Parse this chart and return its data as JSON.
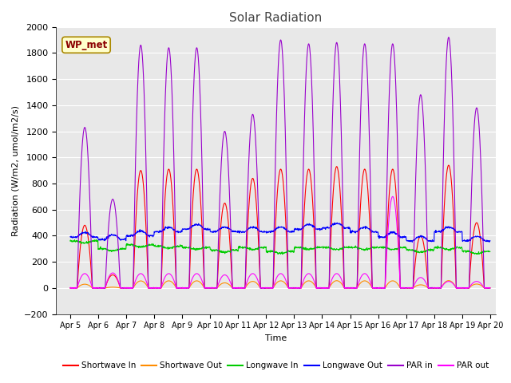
{
  "title": "Solar Radiation",
  "xlabel": "Time",
  "ylabel": "Radiation (W/m2, umol/m2/s)",
  "ylim": [
    -200,
    2000
  ],
  "yticks": [
    -200,
    0,
    200,
    400,
    600,
    800,
    1000,
    1200,
    1400,
    1600,
    1800,
    2000
  ],
  "xlim_days": [
    4.5,
    20.2
  ],
  "xtick_days": [
    5,
    6,
    7,
    8,
    9,
    10,
    11,
    12,
    13,
    14,
    15,
    16,
    17,
    18,
    19,
    20
  ],
  "xtick_labels": [
    "Apr 5",
    "Apr 6",
    "Apr 7",
    "Apr 8",
    "Apr 9",
    "Apr 10",
    "Apr 11",
    "Apr 12",
    "Apr 13",
    "Apr 14",
    "Apr 15",
    "Apr 16",
    "Apr 17",
    "Apr 18",
    "Apr 19",
    "Apr 20"
  ],
  "colors": {
    "shortwave_in": "#ff0000",
    "shortwave_out": "#ff8c00",
    "longwave_in": "#00cc00",
    "longwave_out": "#0000ff",
    "par_in": "#9900cc",
    "par_out": "#ff00ff"
  },
  "legend_labels": [
    "Shortwave In",
    "Shortwave Out",
    "Longwave In",
    "Longwave Out",
    "PAR in",
    "PAR out"
  ],
  "wp_met_label": "WP_met",
  "fig_bg": "#ffffff",
  "plot_bg": "#e8e8e8",
  "grid_color": "#ffffff",
  "days_data": {
    "peak_sw_in": [
      480,
      100,
      900,
      910,
      910,
      650,
      840,
      910,
      910,
      930,
      910,
      910,
      400,
      940,
      500
    ],
    "peak_par_in": [
      1230,
      680,
      1860,
      1840,
      1840,
      1200,
      1330,
      1900,
      1870,
      1880,
      1870,
      1870,
      1480,
      1920,
      1380
    ],
    "peak_par_out": [
      110,
      115,
      110,
      110,
      110,
      100,
      110,
      110,
      110,
      110,
      110,
      700,
      80,
      50,
      50
    ],
    "lw_out_base": [
      390,
      370,
      400,
      430,
      450,
      430,
      430,
      430,
      450,
      460,
      430,
      390,
      360,
      430,
      360
    ],
    "lw_in_base": [
      360,
      300,
      330,
      320,
      310,
      290,
      310,
      280,
      310,
      310,
      310,
      310,
      290,
      310,
      280
    ]
  },
  "pts_per_day": 96,
  "n_days": 15
}
